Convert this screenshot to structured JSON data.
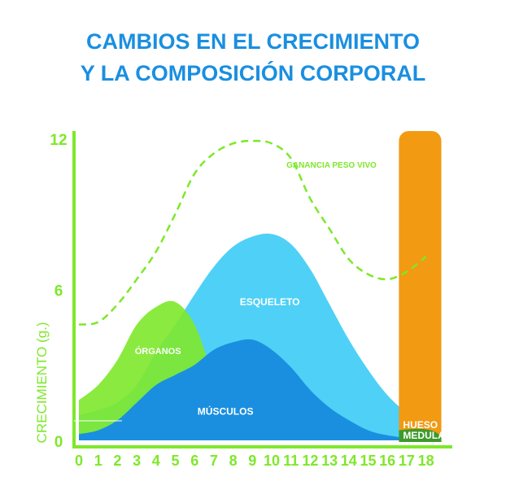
{
  "title_line1": "CAMBIOS EN EL CRECIMIENTO",
  "title_line2": "Y LA COMPOSICIÓN CORPORAL",
  "colors": {
    "title": "#1a8fe0",
    "axis": "#7ee82a",
    "organos": "#7ee82a",
    "esqueleto": "#4fd0f7",
    "musculos": "#1a8fe0",
    "ganancia": "#7ee82a",
    "hueso": "#f19a12",
    "hueso_dark": "#3d9a2a"
  },
  "chart_data": {
    "type": "area",
    "title": "CAMBIOS EN EL CRECIMIENTO Y LA COMPOSICIÓN CORPORAL",
    "ylabel": "CRECIMIENTO (g.)",
    "xlabel": "",
    "x": [
      0,
      1,
      2,
      3,
      4,
      5,
      6,
      7,
      8,
      9,
      10,
      11,
      12,
      13,
      14,
      15,
      16,
      17,
      18
    ],
    "xlim": [
      0,
      18
    ],
    "ylim": [
      0,
      12
    ],
    "y_ticks": [
      0,
      6,
      12
    ],
    "series": [
      {
        "name": "ESQUELETO",
        "values": [
          1.0,
          1.2,
          1.5,
          2.2,
          3.5,
          4.6,
          5.8,
          6.9,
          7.7,
          8.1,
          8.2,
          7.8,
          6.8,
          5.4,
          4.0,
          2.8,
          1.8,
          1.1,
          0.7
        ]
      },
      {
        "name": "ÓRGANOS",
        "values": [
          1.6,
          2.2,
          3.2,
          4.6,
          5.3,
          5.5,
          4.6,
          2.6,
          1.5,
          1.1,
          0.9,
          0.8,
          0.6,
          0.4,
          0.3,
          0.2,
          0.15,
          0.1,
          0.05
        ]
      },
      {
        "name": "MÚSCULOS",
        "values": [
          0.25,
          0.4,
          0.8,
          1.5,
          2.2,
          2.6,
          3.0,
          3.6,
          3.9,
          4.0,
          3.6,
          2.9,
          2.0,
          1.3,
          0.8,
          0.4,
          0.2,
          0.1,
          0.05
        ]
      },
      {
        "name": "GANANCIA PESO VIVO",
        "values": [
          4.6,
          4.7,
          5.4,
          6.4,
          7.5,
          9.0,
          10.6,
          11.4,
          11.8,
          11.9,
          11.8,
          11.2,
          9.6,
          8.4,
          7.2,
          6.6,
          6.4,
          6.7,
          7.3
        ]
      }
    ],
    "bands": [
      {
        "name": "HUESO MEDULAR",
        "x_range": [
          16.6,
          18.8
        ]
      }
    ]
  }
}
